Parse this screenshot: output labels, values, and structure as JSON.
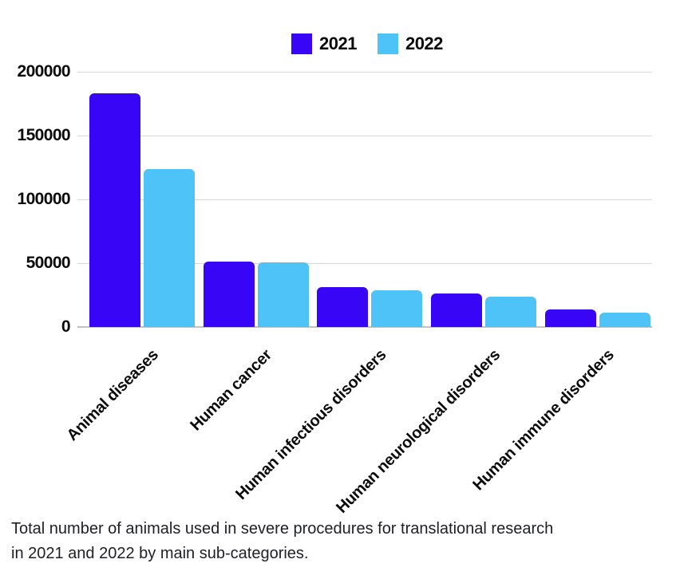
{
  "legend": {
    "items": [
      {
        "label": "2021",
        "color": "#3805F7"
      },
      {
        "label": "2022",
        "color": "#4DC3F7"
      }
    ]
  },
  "chart_data": {
    "type": "bar",
    "categories": [
      "Animal diseases",
      "Human cancer",
      "Human infectious disorders",
      "Human neurological disorders",
      "Human immune disorders"
    ],
    "series": [
      {
        "name": "2021",
        "color": "#3805F7",
        "values": [
          183000,
          51500,
          31500,
          26500,
          14000
        ]
      },
      {
        "name": "2022",
        "color": "#4DC3F7",
        "values": [
          124000,
          50500,
          29000,
          24000,
          11500
        ]
      }
    ],
    "title": "",
    "xlabel": "",
    "ylabel": "",
    "ylim": [
      0,
      200000
    ],
    "y_ticks": [
      0,
      50000,
      100000,
      150000,
      200000
    ],
    "y_tick_labels": [
      "0",
      "50000",
      "100000",
      "150000",
      "200000"
    ],
    "grid": true,
    "legend_position": "top",
    "x_tick_rotation": 45
  },
  "caption": {
    "lines": [
      "Total number of animals used in severe procedures for translational research",
      "in 2021 and 2022 by main sub-categories."
    ]
  },
  "colors": {
    "background": "#ffffff",
    "gridline": "#d8d8d8",
    "baseline": "#c2c2c2",
    "text": "#0b0b0b",
    "caption_text": "#202124"
  }
}
